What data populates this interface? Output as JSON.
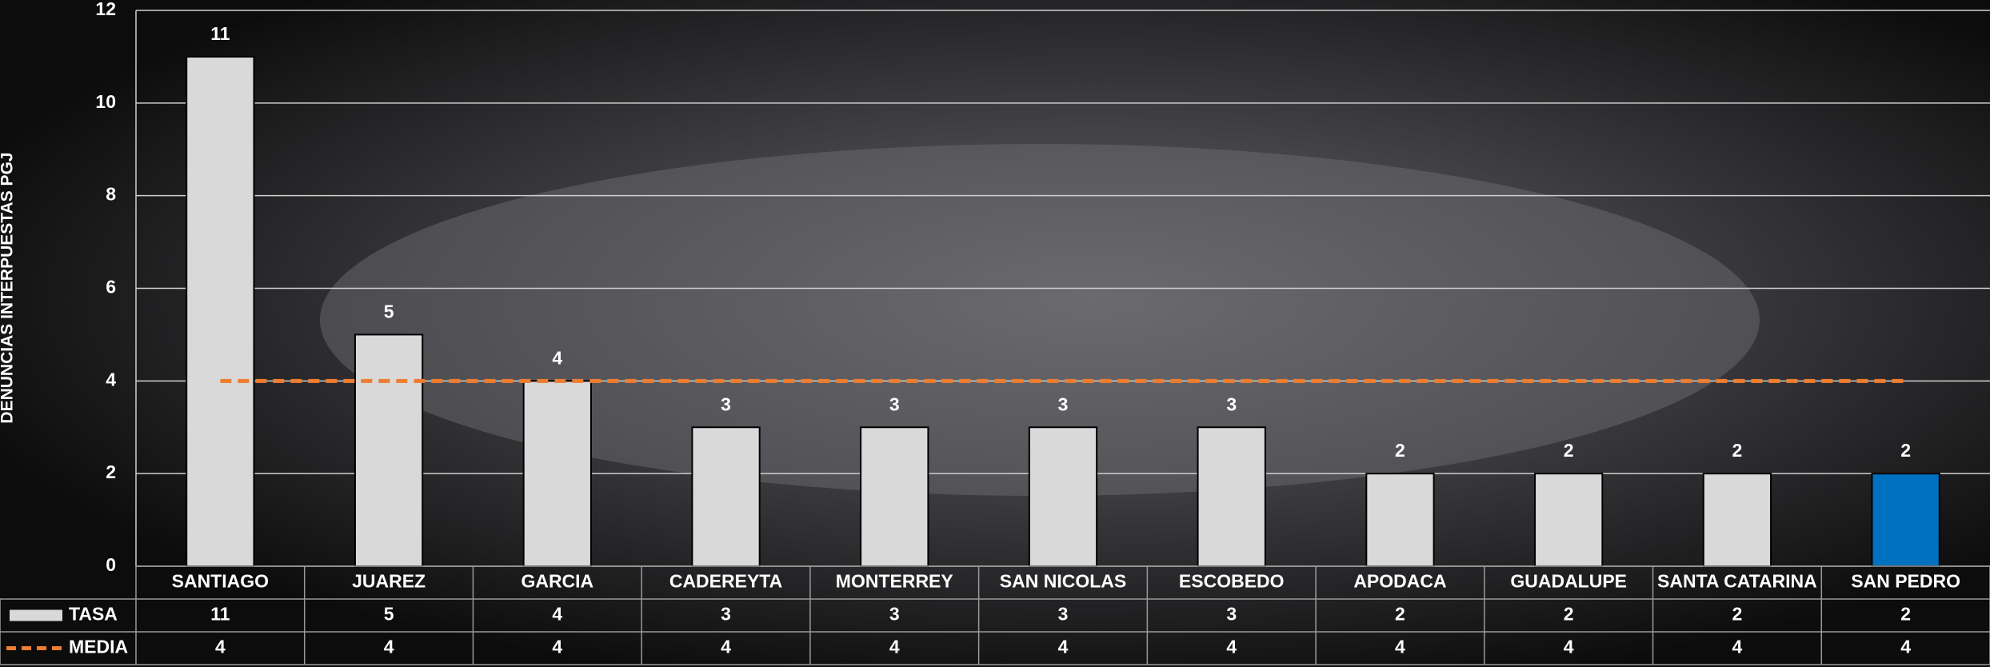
{
  "chart_data": {
    "type": "bar",
    "y_axis_label": "DENUNCIAS INTERPUESTAS PGJ",
    "categories": [
      "SANTIAGO",
      "JUAREZ",
      "GARCIA",
      "CADEREYTA",
      "MONTERREY",
      "SAN NICOLAS",
      "ESCOBEDO",
      "APODACA",
      "GUADALUPE",
      "SANTA CATARINA",
      "SAN PEDRO"
    ],
    "series": [
      {
        "name": "TASA",
        "type": "bar",
        "colors": [
          "#d9d9d9",
          "#d9d9d9",
          "#d9d9d9",
          "#d9d9d9",
          "#d9d9d9",
          "#d9d9d9",
          "#d9d9d9",
          "#d9d9d9",
          "#d9d9d9",
          "#d9d9d9",
          "#0070c0"
        ],
        "color": "#d9d9d9",
        "values": [
          11,
          5,
          4,
          3,
          3,
          3,
          3,
          2,
          2,
          2,
          2
        ]
      },
      {
        "name": "MEDIA",
        "type": "line",
        "color": "#ed7d31",
        "dashed": true,
        "values": [
          4,
          4,
          4,
          4,
          4,
          4,
          4,
          4,
          4,
          4,
          4
        ]
      }
    ],
    "ylim": [
      0,
      12
    ],
    "yticks": [
      0,
      2,
      4,
      6,
      8,
      10,
      12
    ],
    "grid": true,
    "data_table": true
  }
}
